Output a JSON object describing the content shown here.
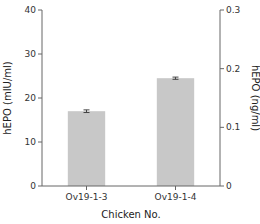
{
  "chart_data": {
    "type": "bar",
    "categories": [
      "Ov19-1-3",
      "Ov19-1-4"
    ],
    "values": [
      17.0,
      24.5
    ],
    "errors": [
      0.3,
      0.25
    ],
    "color": "#c8c8c8",
    "xlabel": "Chicken No.",
    "ylabel": "hEPO (mIU/ml)",
    "y2label": "hEPO (ng/ml)",
    "ylim": [
      0,
      40
    ],
    "yticks": [
      0,
      10,
      20,
      30,
      40
    ],
    "y2lim": [
      0,
      0.3
    ],
    "y2ticks": [
      0,
      0.1,
      0.2,
      0.3
    ]
  }
}
